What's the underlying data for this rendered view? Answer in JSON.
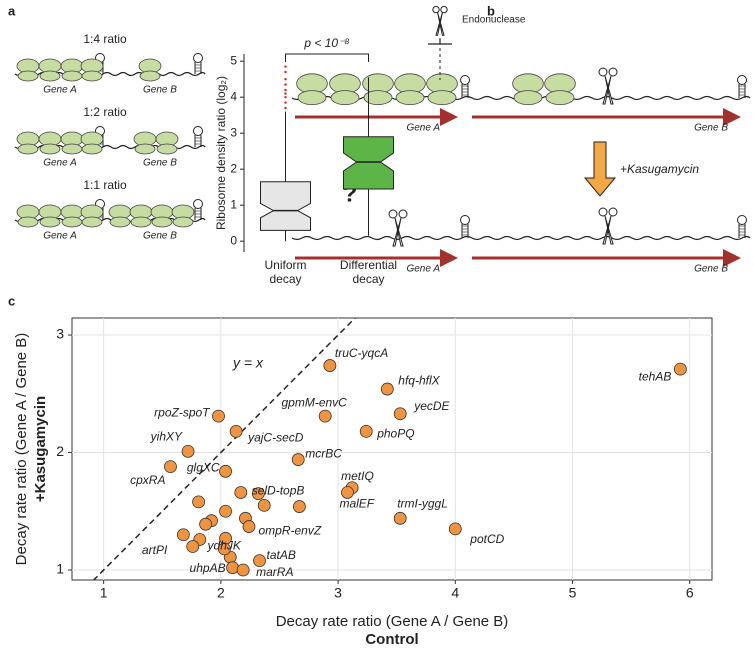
{
  "panel_labels": [
    "a",
    "b",
    "c"
  ],
  "diagram_a": {
    "rows": [
      {
        "ratio": "1:4 ratio",
        "gene_a": "Gene A",
        "gene_b": "Gene B"
      },
      {
        "ratio": "1:2 ratio",
        "gene_a": "Gene A",
        "gene_b": "Gene B"
      },
      {
        "ratio": "1:1 ratio",
        "gene_a": "Gene A",
        "gene_b": "Gene B"
      }
    ]
  },
  "diagram_b": {
    "endonuclease": "Endonuclease",
    "treatment": "+Kasugamycin",
    "question": "?",
    "top": {
      "gene_a": "Gene A",
      "gene_b": "Gene B"
    },
    "bottom": {
      "gene_a": "Gene A",
      "gene_b": "Gene B"
    }
  },
  "chart_data": [
    {
      "type": "box",
      "y_label": "Ribosome density ratio (log₂)",
      "annotation": "p < 10⁻⁸",
      "categories": [
        "Uniform decay",
        "Differential decay"
      ],
      "colors": [
        "#e6e6e6",
        "#5db548"
      ],
      "flier_color": "#e0201b",
      "stats": [
        {
          "whislo": 0,
          "q1": 0.3,
          "notch_lo": 0.65,
          "med": 0.85,
          "notch_hi": 1.05,
          "q3": 1.65,
          "whishi": 3.6,
          "fliers": [
            3.7,
            3.85,
            4.0,
            4.1,
            4.2,
            4.35,
            4.5,
            4.7,
            4.85
          ]
        },
        {
          "whislo": 0.15,
          "q1": 1.45,
          "notch_lo": 1.95,
          "med": 2.2,
          "notch_hi": 2.45,
          "q3": 2.9,
          "whishi": 4.55,
          "fliers": []
        }
      ],
      "ylim": [
        -0.3,
        5.2
      ],
      "yticks": [
        0,
        1,
        2,
        3,
        4,
        5
      ]
    },
    {
      "type": "scatter",
      "x_label": "Decay rate ratio (Gene A / Gene B)",
      "x_label_bold": "Control",
      "y_label": "Decay rate ratio (Gene A / Gene B)",
      "y_label_bold": "+Kasugamycin",
      "annotation": "y = x",
      "color": "#f0943f",
      "grid": true,
      "x": [
        5.92,
        2.93,
        3.42,
        2.89,
        3.53,
        1.98,
        2.13,
        3.24,
        1.72,
        2.66,
        1.57,
        2.04,
        3.12,
        3.08,
        2.67,
        3.53,
        4.0,
        2.21,
        2.08,
        2.33,
        1.68,
        2.1,
        2.19,
        1.81,
        2.17,
        2.32,
        2.37,
        2.04,
        1.92,
        1.87,
        2.24,
        1.82,
        1.76,
        2.04,
        2.03
      ],
      "y": [
        2.71,
        2.74,
        2.54,
        2.31,
        2.33,
        2.31,
        2.18,
        2.18,
        2.01,
        1.94,
        1.88,
        1.84,
        1.7,
        1.66,
        1.54,
        1.44,
        1.35,
        1.44,
        1.11,
        1.08,
        1.3,
        1.02,
        1.0,
        1.58,
        1.66,
        1.65,
        1.55,
        1.5,
        1.42,
        1.39,
        1.37,
        1.26,
        1.2,
        1.27,
        1.18
      ],
      "labels": [
        "tehAB",
        "truC-yqcA",
        "hfq-hflX",
        "gpmM-envC",
        "yecDE",
        "rpoZ-spoT",
        "yajC-secD",
        "phoPQ",
        "yihXY",
        "mcrBC",
        "cpxRA",
        "glgXC",
        "metIQ",
        "malEF",
        "selD-topB",
        "trmI-yggL",
        "potCD",
        "ompR-envZ",
        "ydhJK",
        "tatAB",
        "artPI",
        "uhpAB",
        "marRA",
        null,
        null,
        null,
        null,
        null,
        null,
        null,
        null,
        null,
        null,
        null,
        null
      ],
      "xlim": [
        0.73,
        6.19
      ],
      "ylim": [
        0.915,
        3.145
      ],
      "xticks": [
        1,
        2,
        3,
        4,
        5,
        6
      ],
      "yticks": [
        1,
        2,
        3
      ]
    }
  ]
}
